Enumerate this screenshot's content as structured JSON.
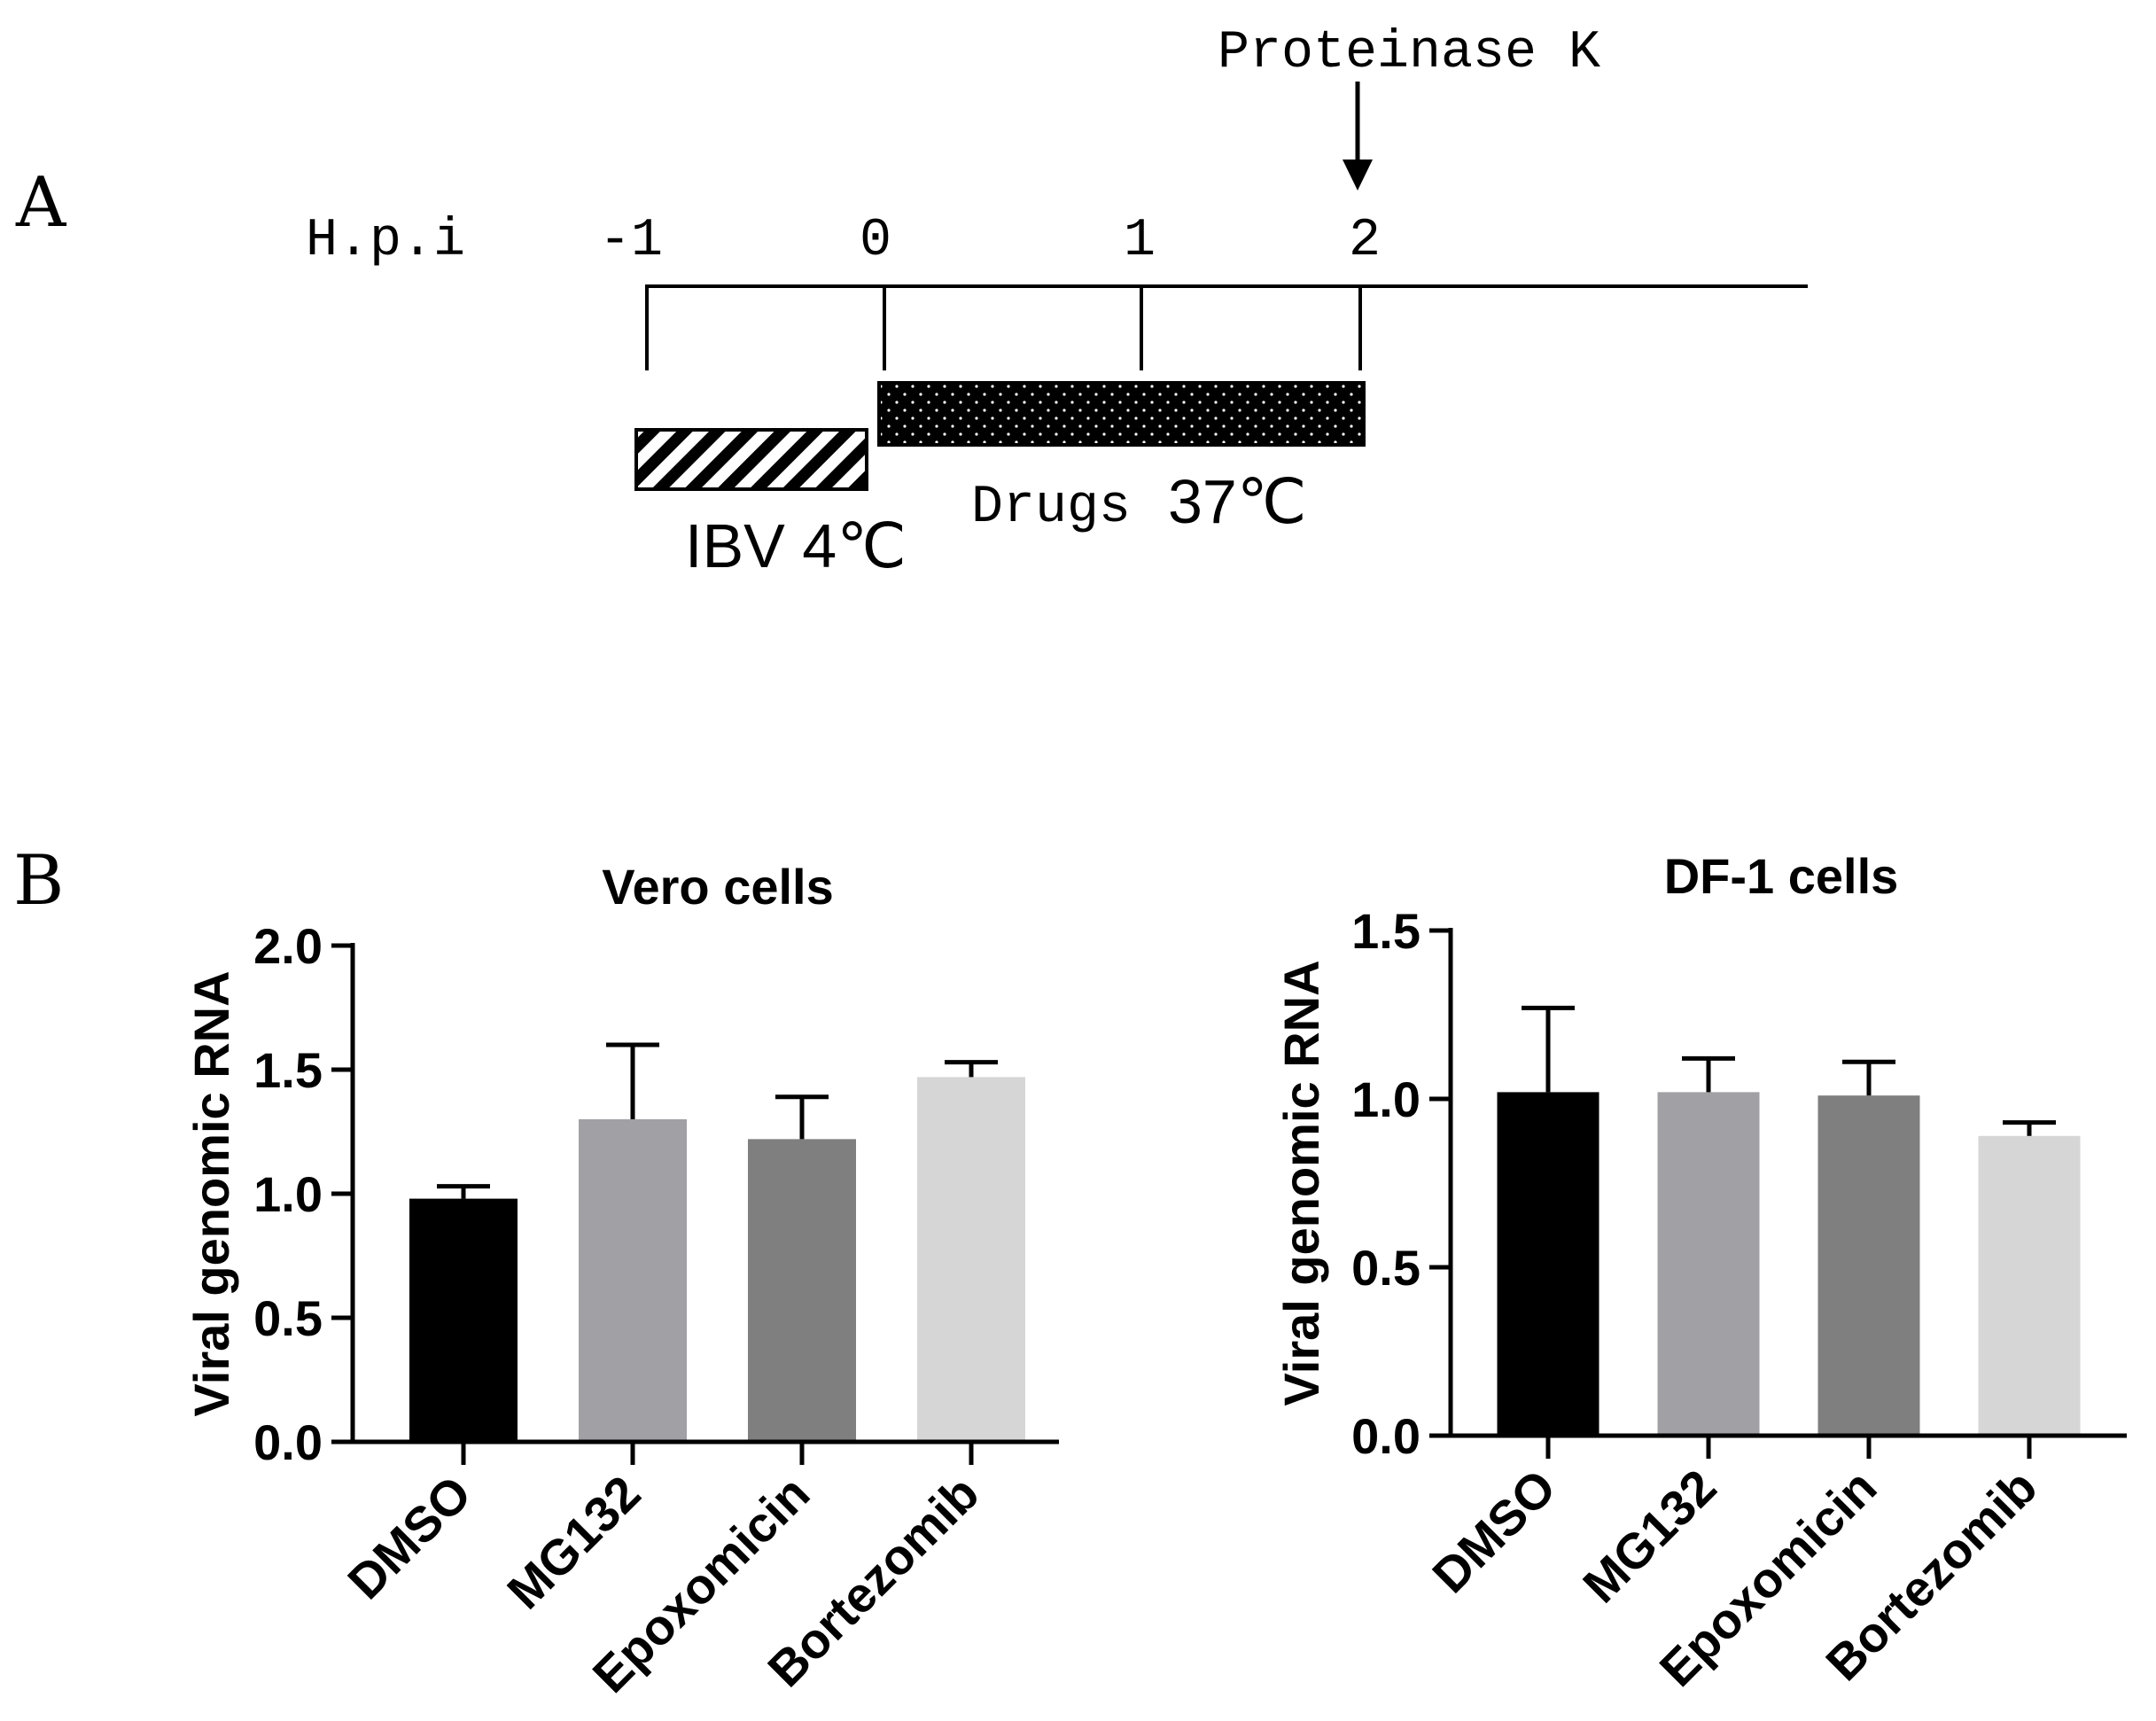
{
  "panel_a": {
    "label": "A",
    "axis_label": "H.p.i",
    "ticks": [
      "-1",
      "0",
      "1",
      "2"
    ],
    "arrow_label": "Proteinase K",
    "ibv_label": "IBV 4℃",
    "drugs_label": "Drugs",
    "drugs_temp": "37℃"
  },
  "panel_b": {
    "label": "B"
  },
  "colors": {
    "dmso": "#000000",
    "mg132": "#a0a0a5",
    "epoxomicin": "#7f7f7f",
    "bortezomib": "#d6d6d6"
  },
  "chart_data": [
    {
      "type": "bar",
      "title": "Vero cells",
      "ylabel": "Viral genomic  RNA",
      "xlabel": "",
      "categories": [
        "DMSO",
        "MG132",
        "Epoxomicin",
        "Bortezomib"
      ],
      "values": [
        0.98,
        1.3,
        1.22,
        1.47
      ],
      "errors": [
        0.05,
        0.3,
        0.17,
        0.06
      ],
      "ylim": [
        0,
        2.0
      ],
      "yticks": [
        "0.0",
        "0.5",
        "1.0",
        "1.5",
        "2.0"
      ]
    },
    {
      "type": "bar",
      "title": "DF-1 cells",
      "ylabel": "Viral genomic  RNA",
      "xlabel": "",
      "categories": [
        "DMSO",
        "MG132",
        "Epoxomicin",
        "Bortezomib"
      ],
      "values": [
        1.02,
        1.02,
        1.01,
        0.89
      ],
      "errors": [
        0.25,
        0.1,
        0.1,
        0.04
      ],
      "ylim": [
        0,
        1.5
      ],
      "yticks": [
        "0.0",
        "0.5",
        "1.0",
        "1.5"
      ]
    }
  ]
}
